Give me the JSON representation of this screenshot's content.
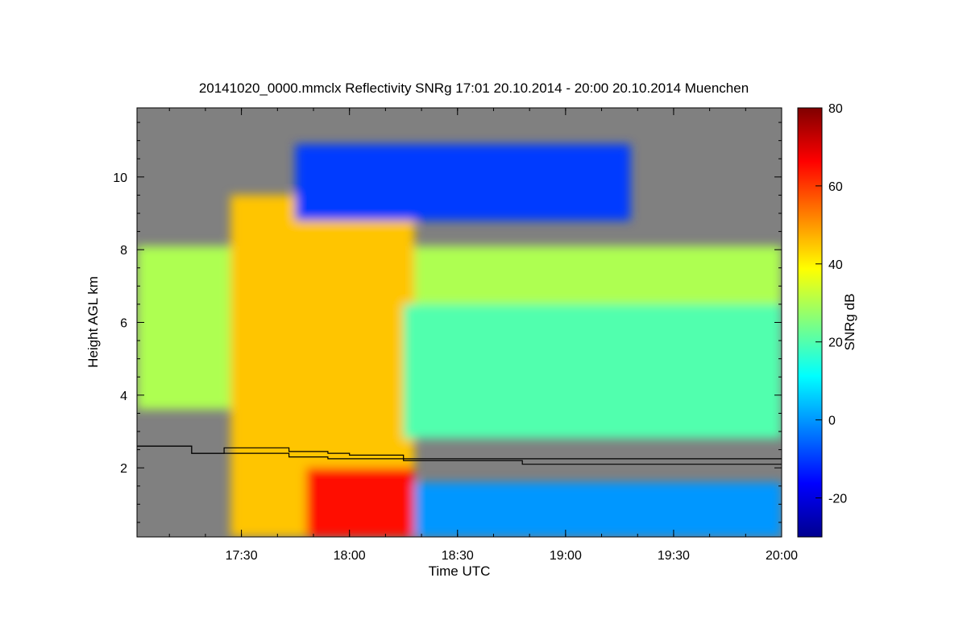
{
  "chart_data": {
    "type": "heatmap",
    "title": "20141020_0000.mmclx Reflectivity SNRg   17:01 20.10.2014 - 20:00 20.10.2014 Muenchen",
    "xlabel": "Time UTC",
    "ylabel": "Height AGL km",
    "colorbar_label": "SNRg dB",
    "x_range_hours": [
      17.0167,
      20.0
    ],
    "y_range_km": [
      0.1,
      11.9
    ],
    "x_ticks": [
      {
        "value": 17.5,
        "label": "17:30"
      },
      {
        "value": 18.0,
        "label": "18:00"
      },
      {
        "value": 18.5,
        "label": "18:30"
      },
      {
        "value": 19.0,
        "label": "19:00"
      },
      {
        "value": 19.5,
        "label": "19:30"
      },
      {
        "value": 20.0,
        "label": "20:00"
      }
    ],
    "y_ticks": [
      {
        "value": 2,
        "label": "2"
      },
      {
        "value": 4,
        "label": "4"
      },
      {
        "value": 6,
        "label": "6"
      },
      {
        "value": 8,
        "label": "8"
      },
      {
        "value": 10,
        "label": "10"
      }
    ],
    "colorbar_range": [
      -30,
      80
    ],
    "colorbar_ticks": [
      {
        "value": -20,
        "label": "-20"
      },
      {
        "value": 0,
        "label": "0"
      },
      {
        "value": 20,
        "label": "20"
      },
      {
        "value": 40,
        "label": "40"
      },
      {
        "value": 60,
        "label": "60"
      },
      {
        "value": 80,
        "label": "80"
      }
    ],
    "colormap": [
      "#00008f",
      "#0000ff",
      "#0080ff",
      "#00ffff",
      "#80ff80",
      "#ffff00",
      "#ff8000",
      "#ff0000",
      "#800000"
    ],
    "background_color": "#808080",
    "overlay_lines": [
      {
        "name": "line-upper",
        "x": [
          17.0167,
          17.27,
          17.27,
          17.42,
          17.42,
          17.72,
          17.72,
          17.9,
          17.9,
          18.0,
          18.0,
          18.25,
          18.25,
          18.8,
          18.8,
          20.0
        ],
        "y": [
          2.6,
          2.6,
          2.4,
          2.4,
          2.55,
          2.55,
          2.45,
          2.45,
          2.4,
          2.4,
          2.35,
          2.35,
          2.25,
          2.25,
          2.25,
          2.25
        ]
      },
      {
        "name": "line-lower",
        "x": [
          17.0167,
          17.27,
          17.27,
          17.72,
          17.72,
          17.9,
          17.9,
          18.25,
          18.25,
          18.8,
          18.8,
          20.0
        ],
        "y": [
          2.6,
          2.6,
          2.4,
          2.4,
          2.3,
          2.3,
          2.25,
          2.25,
          2.2,
          2.2,
          2.1,
          2.1
        ]
      }
    ],
    "field_regions": [
      {
        "name": "low-cloud-layer",
        "x": [
          17.0167,
          20.0
        ],
        "y_bottom": 3.6,
        "y_top": 8.1,
        "snr_db": 30
      },
      {
        "name": "convective-core",
        "x": [
          17.45,
          18.3
        ],
        "y_bottom": 0.1,
        "y_top": 9.5,
        "snr_db": 45
      },
      {
        "name": "precip-max",
        "x": [
          17.8,
          18.3
        ],
        "y_bottom": 0.1,
        "y_top": 2.0,
        "snr_db": 65
      },
      {
        "name": "anvil-top",
        "x": [
          17.75,
          19.3
        ],
        "y_bottom": 8.8,
        "y_top": 10.9,
        "snr_db": -10
      },
      {
        "name": "mid-cloud",
        "x": [
          18.25,
          20.0
        ],
        "y_bottom": 2.8,
        "y_top": 6.5,
        "snr_db": 20
      },
      {
        "name": "clutter-low",
        "x": [
          18.3,
          20.0
        ],
        "y_bottom": 0.1,
        "y_top": 1.6,
        "snr_db": 0
      }
    ]
  }
}
